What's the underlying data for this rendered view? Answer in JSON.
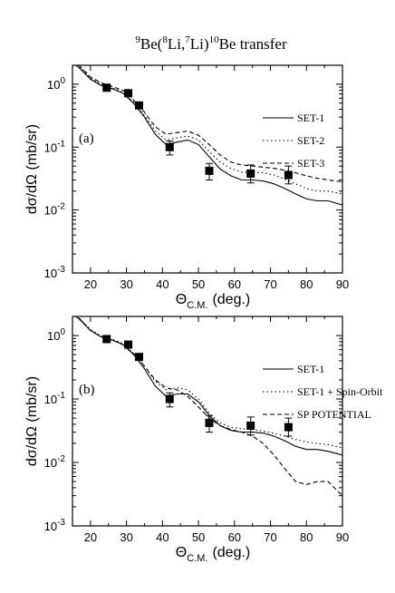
{
  "title_parts": {
    "sup_a": "9",
    "part_a": "Be(",
    "sup_b": "8",
    "part_b": "Li,",
    "sup_c": "7",
    "part_c": "Li)",
    "sup_d": "10",
    "part_d": "Be  transfer"
  },
  "chart_data": [
    {
      "type": "line",
      "panel_label": "(a)",
      "ylabel": "dσ/dΩ (mb/sr)",
      "xlabel_main": "Θ",
      "xlabel_sub": "C.M.",
      "xlabel_unit": "(deg.)",
      "xlim": [
        15,
        90
      ],
      "ylim": [
        0.001,
        2
      ],
      "yscale": "log",
      "x_ticks": [
        "20",
        "30",
        "40",
        "50",
        "60",
        "70",
        "80",
        "90"
      ],
      "y_ticks": [
        {
          "base": "10",
          "exp": "0",
          "value": 1
        },
        {
          "base": "10",
          "exp": "-1",
          "value": 0.1
        },
        {
          "base": "10",
          "exp": "-2",
          "value": 0.01
        },
        {
          "base": "10",
          "exp": "-3",
          "value": 0.001
        }
      ],
      "legend_position": "top-right",
      "series": [
        {
          "name": "SET-1",
          "style": "solid",
          "x": [
            15,
            17,
            20,
            23,
            26,
            29,
            32,
            35,
            38,
            41,
            44,
            47,
            50,
            53,
            56,
            59,
            62,
            65,
            68,
            71,
            74,
            77,
            80,
            83,
            86,
            90
          ],
          "y": [
            2.2,
            1.8,
            1.2,
            0.95,
            0.85,
            0.72,
            0.5,
            0.3,
            0.16,
            0.11,
            0.12,
            0.13,
            0.11,
            0.07,
            0.045,
            0.035,
            0.03,
            0.03,
            0.029,
            0.026,
            0.022,
            0.018,
            0.015,
            0.014,
            0.014,
            0.012
          ]
        },
        {
          "name": "SET-2",
          "style": "dotted",
          "x": [
            15,
            17,
            20,
            23,
            26,
            29,
            32,
            35,
            38,
            41,
            44,
            47,
            50,
            53,
            56,
            59,
            62,
            65,
            68,
            71,
            74,
            77,
            80,
            83,
            86,
            90
          ],
          "y": [
            2.2,
            1.9,
            1.25,
            1.0,
            0.88,
            0.75,
            0.52,
            0.32,
            0.18,
            0.13,
            0.14,
            0.15,
            0.13,
            0.085,
            0.058,
            0.046,
            0.04,
            0.04,
            0.039,
            0.036,
            0.031,
            0.026,
            0.022,
            0.02,
            0.02,
            0.018
          ]
        },
        {
          "name": "SET-3",
          "style": "dashed",
          "x": [
            15,
            17,
            20,
            23,
            26,
            29,
            32,
            35,
            38,
            41,
            44,
            47,
            50,
            53,
            56,
            59,
            62,
            65,
            68,
            71,
            74,
            77,
            80,
            83,
            86,
            90
          ],
          "y": [
            2.3,
            1.95,
            1.3,
            1.05,
            0.92,
            0.8,
            0.56,
            0.36,
            0.21,
            0.16,
            0.17,
            0.18,
            0.155,
            0.11,
            0.075,
            0.058,
            0.052,
            0.05,
            0.048,
            0.046,
            0.043,
            0.039,
            0.035,
            0.032,
            0.03,
            0.028
          ]
        }
      ],
      "experimental": {
        "x": [
          24.5,
          30.5,
          33.5,
          42,
          53,
          64.5,
          75
        ],
        "y": [
          0.88,
          0.72,
          0.46,
          0.1,
          0.042,
          0.038,
          0.036
        ],
        "err_lo": [
          0.8,
          0.64,
          0.41,
          0.075,
          0.03,
          0.027,
          0.026
        ],
        "err_hi": [
          0.96,
          0.8,
          0.51,
          0.125,
          0.055,
          0.052,
          0.05
        ]
      }
    },
    {
      "type": "line",
      "panel_label": "(b)",
      "ylabel": "dσ/dΩ (mb/sr)",
      "xlabel_main": "Θ",
      "xlabel_sub": "C.M.",
      "xlabel_unit": "(deg.)",
      "xlim": [
        15,
        90
      ],
      "ylim": [
        0.001,
        2
      ],
      "yscale": "log",
      "x_ticks": [
        "20",
        "30",
        "40",
        "50",
        "60",
        "70",
        "80",
        "90"
      ],
      "y_ticks": [
        {
          "base": "10",
          "exp": "0",
          "value": 1
        },
        {
          "base": "10",
          "exp": "-1",
          "value": 0.1
        },
        {
          "base": "10",
          "exp": "-2",
          "value": 0.01
        },
        {
          "base": "10",
          "exp": "-3",
          "value": 0.001
        }
      ],
      "legend_position": "top-right",
      "series": [
        {
          "name": "SET-1",
          "style": "solid",
          "x": [
            15,
            17,
            20,
            23,
            26,
            29,
            32,
            35,
            38,
            41,
            44,
            47,
            50,
            53,
            56,
            59,
            62,
            65,
            68,
            71,
            74,
            77,
            80,
            83,
            86,
            90
          ],
          "y": [
            2.2,
            1.8,
            1.2,
            0.95,
            0.85,
            0.72,
            0.5,
            0.3,
            0.16,
            0.11,
            0.12,
            0.12,
            0.09,
            0.055,
            0.038,
            0.032,
            0.03,
            0.03,
            0.029,
            0.026,
            0.022,
            0.018,
            0.016,
            0.016,
            0.015,
            0.013
          ]
        },
        {
          "name": "SET-1 + Spin-Orbit",
          "style": "dotted",
          "x": [
            15,
            17,
            20,
            23,
            26,
            29,
            32,
            35,
            38,
            41,
            44,
            47,
            50,
            53,
            56,
            59,
            62,
            65,
            68,
            71,
            74,
            77,
            80,
            83,
            86,
            90
          ],
          "y": [
            2.2,
            1.85,
            1.25,
            0.98,
            0.88,
            0.75,
            0.52,
            0.33,
            0.19,
            0.14,
            0.15,
            0.14,
            0.1,
            0.06,
            0.042,
            0.036,
            0.034,
            0.033,
            0.031,
            0.029,
            0.026,
            0.023,
            0.021,
            0.02,
            0.019,
            0.017
          ]
        },
        {
          "name": "SP POTENTIAL",
          "style": "dashed",
          "x": [
            15,
            17,
            20,
            23,
            26,
            29,
            32,
            35,
            38,
            41,
            44,
            47,
            50,
            53,
            56,
            59,
            62,
            65,
            68,
            71,
            74,
            77,
            80,
            83,
            86,
            90
          ],
          "y": [
            2.2,
            1.85,
            1.2,
            0.95,
            0.85,
            0.72,
            0.52,
            0.33,
            0.2,
            0.15,
            0.14,
            0.11,
            0.075,
            0.05,
            0.038,
            0.033,
            0.03,
            0.026,
            0.02,
            0.013,
            0.008,
            0.005,
            0.0045,
            0.005,
            0.005,
            0.003
          ]
        }
      ],
      "experimental": {
        "x": [
          24.5,
          30.5,
          33.5,
          42,
          53,
          64.5,
          75
        ],
        "y": [
          0.88,
          0.72,
          0.46,
          0.1,
          0.042,
          0.038,
          0.036
        ],
        "err_lo": [
          0.8,
          0.64,
          0.41,
          0.075,
          0.03,
          0.027,
          0.026
        ],
        "err_hi": [
          0.96,
          0.8,
          0.51,
          0.125,
          0.055,
          0.052,
          0.05
        ]
      }
    }
  ]
}
